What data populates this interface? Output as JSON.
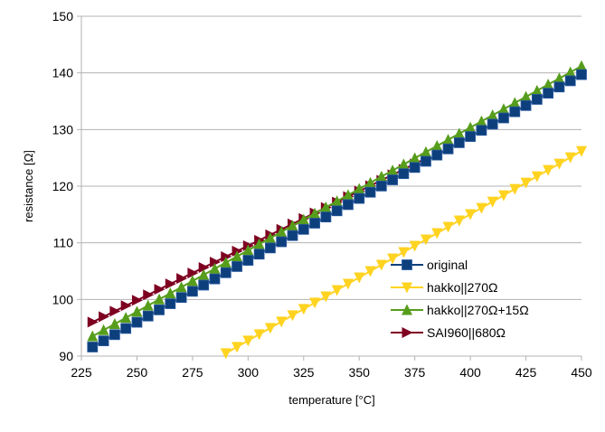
{
  "chart_data": {
    "type": "line",
    "xlabel": "temperature [°C]",
    "ylabel": "resistance [Ω]",
    "xlim": [
      225,
      450
    ],
    "ylim": [
      90,
      150
    ],
    "x_ticks": [
      "225",
      "250",
      "275",
      "300",
      "325",
      "350",
      "375",
      "400",
      "425",
      "450"
    ],
    "y_ticks": [
      "90",
      "100",
      "110",
      "120",
      "130",
      "140",
      "150"
    ],
    "grid": "horizontal",
    "legend_position": "lower-right",
    "series": [
      {
        "name": "original",
        "color": "#0d3f7c",
        "marker": "square",
        "x_start": 230,
        "x_end": 450,
        "x_step": 5,
        "y_start": 91.6,
        "y_end": 139.7
      },
      {
        "name": "hakko||270Ω",
        "color": "#ffd320",
        "marker": "triangle-down",
        "x_start": 290,
        "x_end": 450,
        "x_step": 5,
        "y_start": 90.5,
        "y_end": 126.2
      },
      {
        "name": "hakko||270Ω+15Ω",
        "color": "#579d1c",
        "marker": "triangle-up",
        "x_start": 230,
        "x_end": 450,
        "x_step": 5,
        "y_start": 93.5,
        "y_end": 141.2
      },
      {
        "name": "SAI960||680Ω",
        "color": "#7e0021",
        "marker": "triangle-right",
        "x_start": 230,
        "x_end": 380,
        "x_step": 5,
        "y_start": 96.0,
        "y_end": 124.9
      }
    ]
  }
}
